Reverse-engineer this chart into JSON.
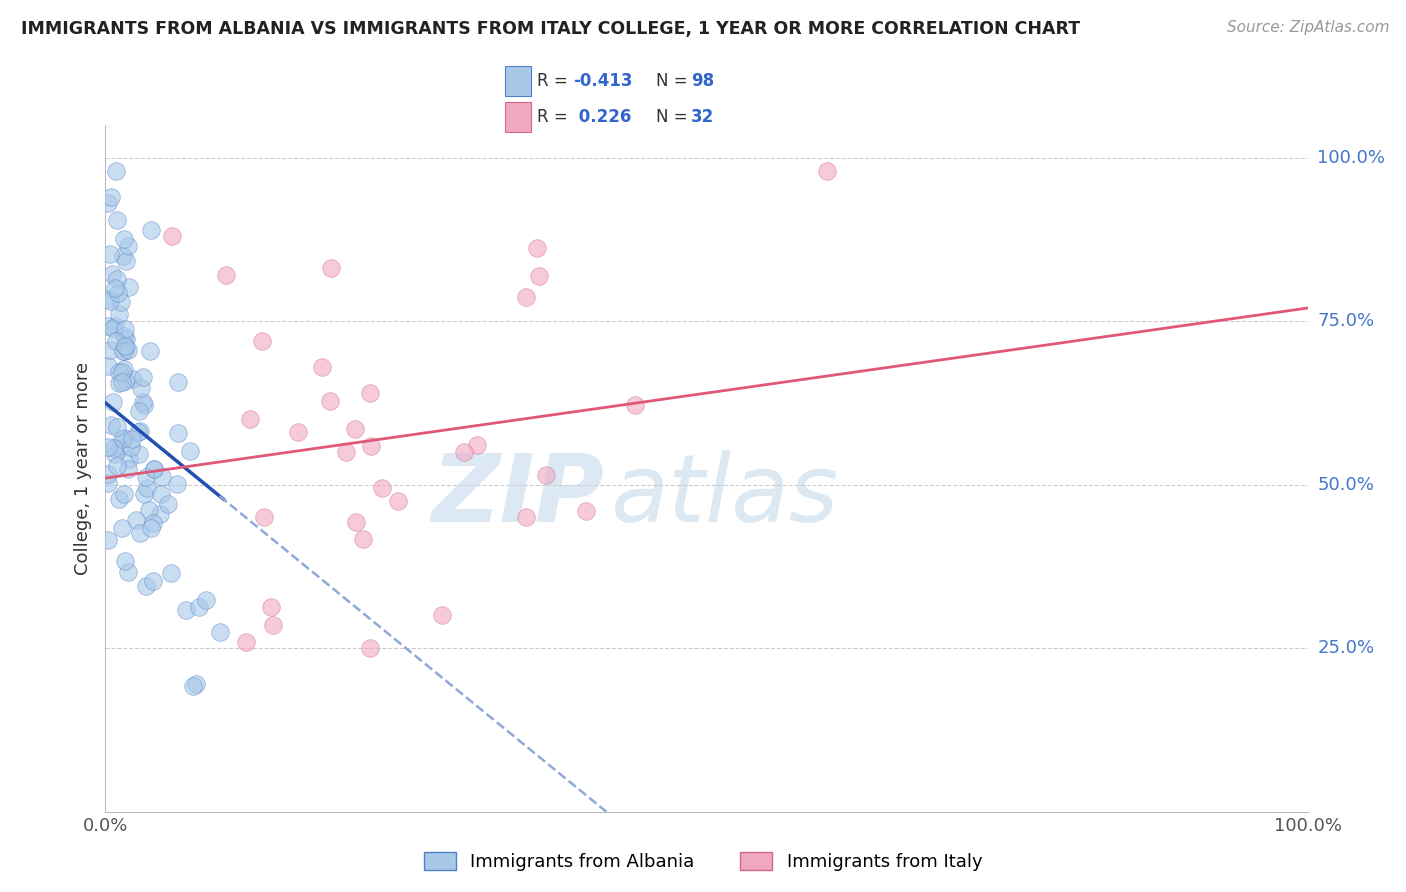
{
  "title": "IMMIGRANTS FROM ALBANIA VS IMMIGRANTS FROM ITALY COLLEGE, 1 YEAR OR MORE CORRELATION CHART",
  "source": "Source: ZipAtlas.com",
  "ylabel": "College, 1 year or more",
  "R1": -0.413,
  "N1": 98,
  "R2": 0.226,
  "N2": 32,
  "color_albania": "#a8c8e8",
  "color_albania_edge": "#5080c8",
  "color_italy": "#f0a8c0",
  "color_italy_edge": "#d06888",
  "color_line_albania": "#2050b0",
  "color_line_italy": "#e05878",
  "color_dashed": "#90a8d8",
  "color_grid": "#cccccc",
  "legend_label1": "Immigrants from Albania",
  "legend_label2": "Immigrants from Italy",
  "ytick_values": [
    0.25,
    0.5,
    0.75,
    1.0
  ],
  "ytick_labels": [
    "25.0%",
    "50.0%",
    "75.0%",
    "100.0%"
  ],
  "xlim": [
    0.0,
    1.0
  ],
  "ylim": [
    0.0,
    1.05
  ],
  "watermark_zip_color": "#c8ddf0",
  "watermark_atlas_color": "#a0c0e0",
  "title_fontsize": 12.5,
  "source_fontsize": 11,
  "tick_fontsize": 13,
  "ylabel_fontsize": 13,
  "legend_fontsize": 13,
  "scatter_size": 160,
  "scatter_alpha": 0.6
}
